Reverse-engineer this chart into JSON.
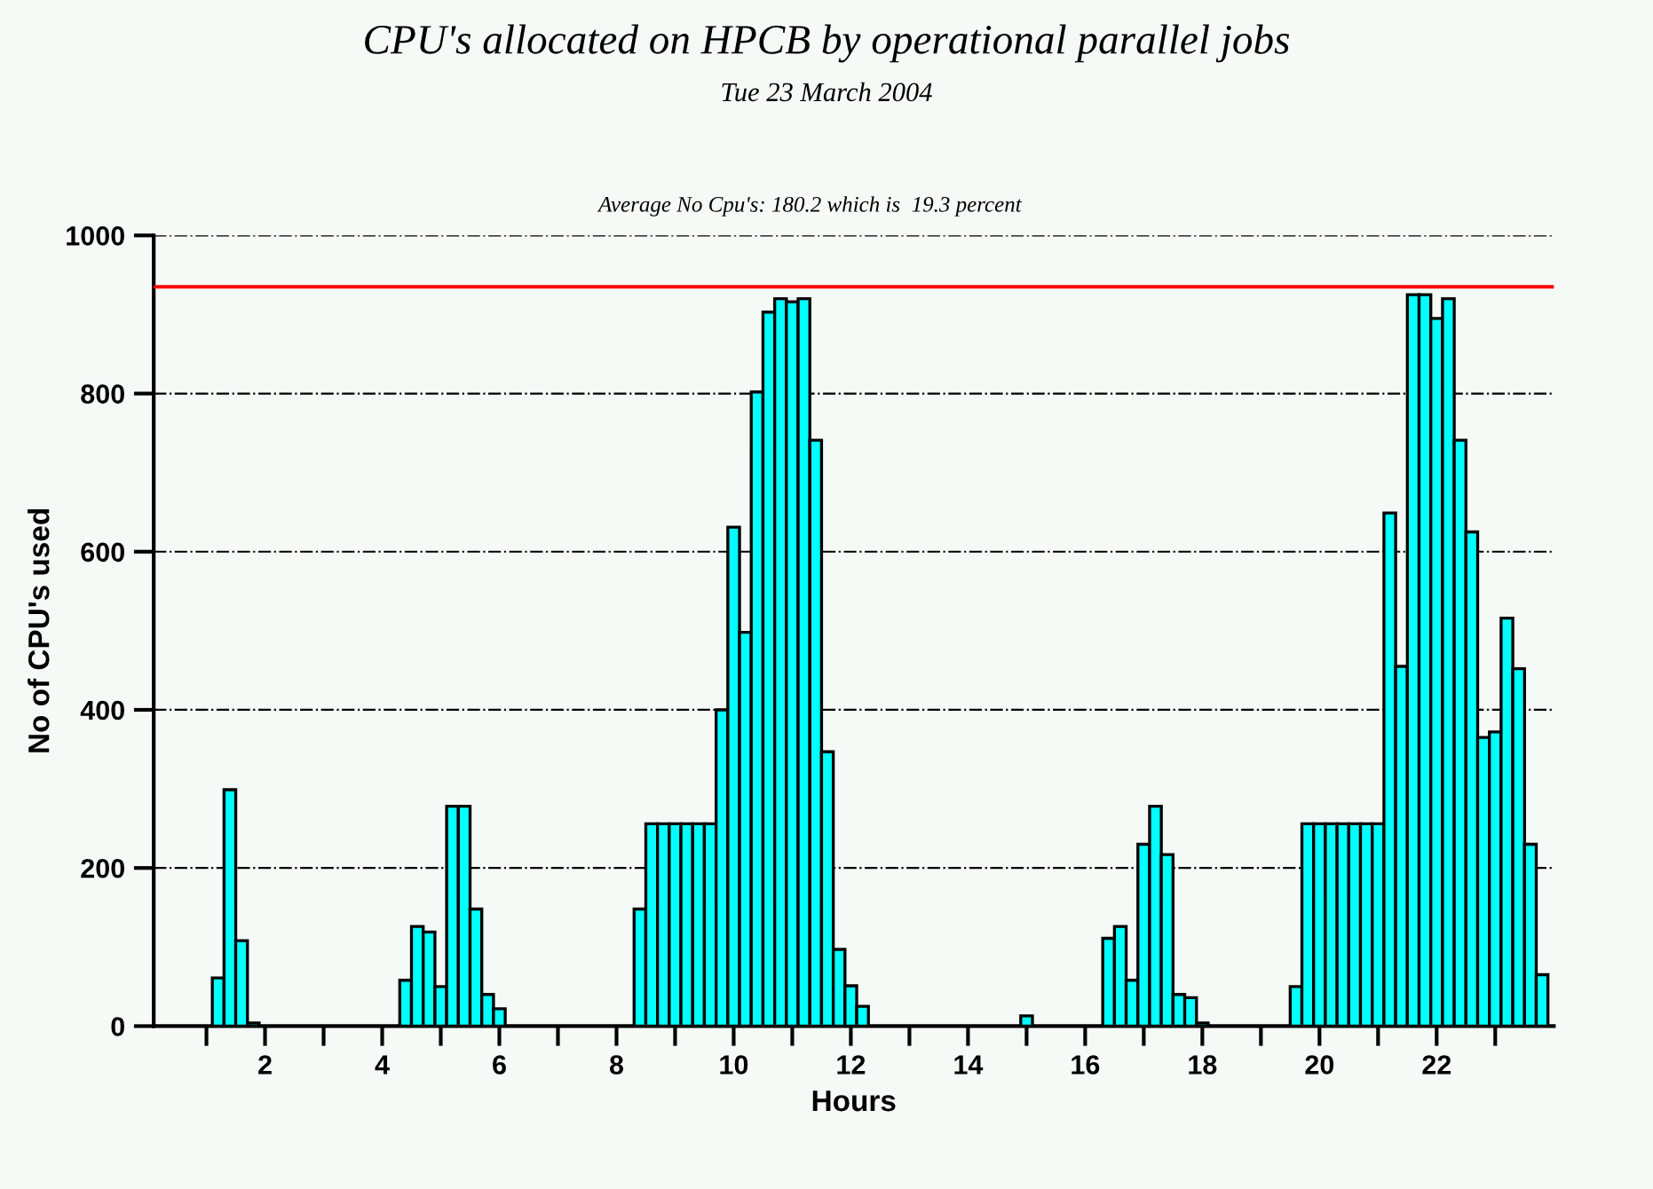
{
  "chart_data": {
    "type": "histogram",
    "title": "CPU's allocated on HPCB by operational parallel jobs",
    "subtitle": "Tue 23 March 2004",
    "annotations": [
      "Average No Cpu's: 180.2 which is  19.3 percent"
    ],
    "xlabel": "Hours",
    "ylabel": "No of CPU's used",
    "color": "#00ffff",
    "bins": [
      0.1,
      0.3,
      0.5,
      0.7,
      0.9,
      1.1,
      1.3,
      1.5,
      1.7,
      1.9,
      2.1,
      2.3,
      2.5,
      2.7,
      2.9,
      3.1,
      3.3,
      3.5,
      3.7,
      3.9,
      4.1,
      4.3,
      4.5,
      4.7,
      4.9,
      5.1,
      5.3,
      5.5,
      5.7,
      5.9,
      6.1,
      6.3,
      6.5,
      6.7,
      6.9,
      7.1,
      7.3,
      7.5,
      7.7,
      7.9,
      8.1,
      8.3,
      8.5,
      8.7,
      8.9,
      9.1,
      9.3,
      9.5,
      9.7,
      9.9,
      10.1,
      10.3,
      10.5,
      10.7,
      10.9,
      11.1,
      11.3,
      11.5,
      11.7,
      11.9,
      12.1,
      12.3,
      12.5,
      12.7,
      12.9,
      13.1,
      13.3,
      13.5,
      13.7,
      13.9,
      14.1,
      14.3,
      14.5,
      14.7,
      14.9,
      15.1,
      15.3,
      15.5,
      15.7,
      15.9,
      16.1,
      16.3,
      16.5,
      16.7,
      16.9,
      17.1,
      17.3,
      17.5,
      17.7,
      17.9,
      18.1,
      18.3,
      18.5,
      18.7,
      18.9,
      19.1,
      19.3,
      19.5,
      19.7,
      19.9,
      20.1,
      20.3,
      20.5,
      20.7,
      20.9,
      21.1,
      21.3,
      21.5,
      21.7,
      21.9,
      22.1,
      22.3,
      22.5,
      22.7,
      22.9,
      23.1,
      23.3,
      23.5,
      23.7,
      23.9
    ],
    "values": [
      0,
      0,
      0,
      0,
      0,
      61,
      299,
      108,
      4,
      0,
      0,
      0,
      0,
      0,
      0,
      0,
      0,
      0,
      0,
      0,
      0,
      58,
      126,
      119,
      50,
      278,
      278,
      148,
      40,
      22,
      0,
      0,
      0,
      0,
      0,
      0,
      0,
      0,
      0,
      0,
      0,
      148,
      256,
      256,
      256,
      256,
      256,
      256,
      400,
      631,
      498,
      802,
      903,
      920,
      916,
      920,
      741,
      347,
      97,
      51,
      25,
      0,
      0,
      0,
      0,
      0,
      0,
      0,
      0,
      0,
      0,
      0,
      0,
      0,
      13,
      0,
      0,
      0,
      0,
      0,
      0,
      111,
      126,
      58,
      230,
      278,
      217,
      40,
      36,
      4,
      0,
      0,
      0,
      0,
      0,
      0,
      0,
      50,
      256,
      256,
      256,
      256,
      256,
      256,
      256,
      649,
      455,
      925,
      925,
      895,
      920,
      741,
      625,
      365,
      372,
      516,
      452,
      230,
      65
    ],
    "xlim": [
      0.1,
      24
    ],
    "xticks": [
      {
        "value": 1,
        "label": null
      },
      2,
      {
        "value": 3,
        "label": null
      },
      4,
      {
        "value": 5,
        "label": null
      },
      6,
      {
        "value": 7,
        "label": null
      },
      8,
      {
        "value": 9,
        "label": null
      },
      10,
      {
        "value": 11,
        "label": null
      },
      12,
      {
        "value": 13,
        "label": null
      },
      14,
      {
        "value": 15,
        "label": null
      },
      16,
      {
        "value": 17,
        "label": null
      },
      18,
      {
        "value": 19,
        "label": null
      },
      20,
      {
        "value": 21,
        "label": null
      },
      22,
      {
        "value": 23,
        "label": null
      }
    ],
    "ylim": [
      0,
      1000
    ],
    "yticks": [
      0,
      200,
      400,
      600,
      800,
      1000
    ],
    "grid": "y",
    "ref_lines": [
      {
        "axis": "y",
        "value": 935,
        "color": "#ff0000"
      }
    ]
  }
}
